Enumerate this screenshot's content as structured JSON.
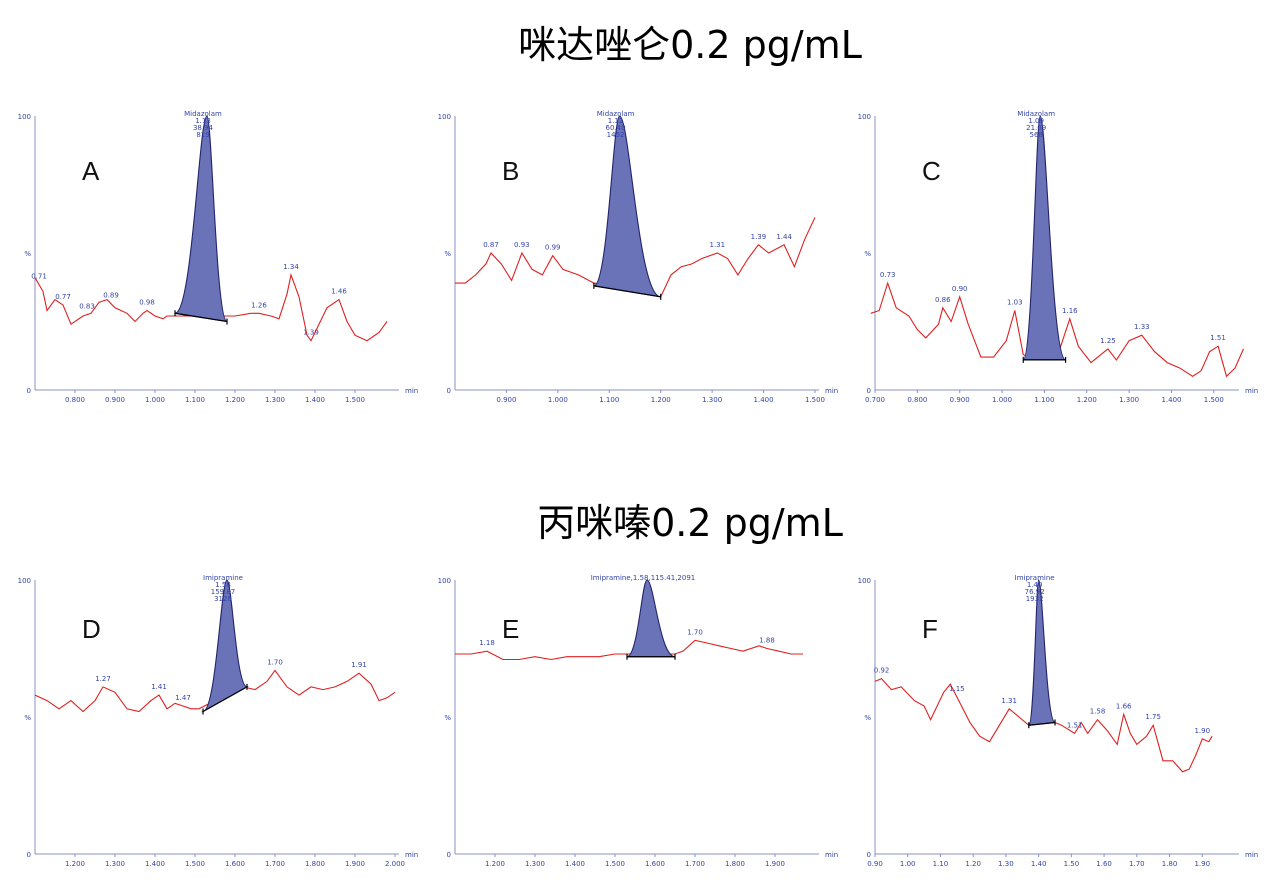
{
  "titles": {
    "top": "咪达唑仑0.2 pg/mL",
    "bottom": "丙咪嗪0.2 pg/mL"
  },
  "colors": {
    "trace": "#e02020",
    "peak_fill": "#6a72b8",
    "axis_text": "#3344aa"
  },
  "chart_data": [
    {
      "type": "line",
      "panel": "A",
      "xlim": [
        0.7,
        1.6
      ],
      "ylim": [
        0,
        100
      ],
      "xticks": [
        "0.800",
        "0.900",
        "1.000",
        "1.100",
        "1.200",
        "1.300",
        "1.400",
        "1.500"
      ],
      "x_unit": "min",
      "y_ticks": [
        "100",
        "%",
        "0"
      ],
      "trace": [
        [
          0.7,
          41
        ],
        [
          0.72,
          36
        ],
        [
          0.73,
          29
        ],
        [
          0.75,
          33
        ],
        [
          0.77,
          31
        ],
        [
          0.79,
          24
        ],
        [
          0.82,
          27
        ],
        [
          0.84,
          28
        ],
        [
          0.86,
          32
        ],
        [
          0.88,
          33
        ],
        [
          0.9,
          30
        ],
        [
          0.93,
          28
        ],
        [
          0.95,
          25
        ],
        [
          0.97,
          28
        ],
        [
          0.98,
          29
        ],
        [
          1.0,
          27
        ],
        [
          1.02,
          26
        ],
        [
          1.03,
          27
        ],
        [
          1.06,
          27
        ],
        [
          1.1,
          27
        ],
        [
          1.14,
          27
        ],
        [
          1.16,
          27
        ],
        [
          1.2,
          27
        ],
        [
          1.24,
          28
        ],
        [
          1.26,
          28
        ],
        [
          1.29,
          27
        ],
        [
          1.31,
          26
        ],
        [
          1.33,
          35
        ],
        [
          1.34,
          42
        ],
        [
          1.36,
          34
        ],
        [
          1.38,
          20
        ],
        [
          1.39,
          18
        ],
        [
          1.41,
          24
        ],
        [
          1.43,
          30
        ],
        [
          1.46,
          33
        ],
        [
          1.48,
          25
        ],
        [
          1.5,
          20
        ],
        [
          1.53,
          18
        ],
        [
          1.56,
          21
        ],
        [
          1.58,
          25
        ]
      ],
      "peak": {
        "start": 1.05,
        "apex": 1.13,
        "end": 1.18,
        "base_y0": 28,
        "base_y1": 25,
        "height": 100
      },
      "peak_label": [
        "Midazolam",
        "1.13",
        "38.94",
        "819"
      ],
      "labels": [
        {
          "x": 0.71,
          "text": "0.71"
        },
        {
          "x": 0.77,
          "text": "0.77"
        },
        {
          "x": 0.83,
          "text": "0.83"
        },
        {
          "x": 0.89,
          "text": "0.89"
        },
        {
          "x": 0.98,
          "text": "0.98"
        },
        {
          "x": 1.26,
          "text": "1.26"
        },
        {
          "x": 1.34,
          "text": "1.34"
        },
        {
          "x": 1.39,
          "text": "1.39"
        },
        {
          "x": 1.46,
          "text": "1.46"
        }
      ]
    },
    {
      "type": "line",
      "panel": "B",
      "xlim": [
        0.8,
        1.5
      ],
      "ylim": [
        0,
        100
      ],
      "xticks": [
        "0.900",
        "1.000",
        "1.100",
        "1.200",
        "1.300",
        "1.400",
        "1.500"
      ],
      "x_unit": "min",
      "y_ticks": [
        "100",
        "%",
        "0"
      ],
      "trace": [
        [
          0.8,
          39
        ],
        [
          0.82,
          39
        ],
        [
          0.84,
          42
        ],
        [
          0.86,
          46
        ],
        [
          0.87,
          50
        ],
        [
          0.89,
          46
        ],
        [
          0.91,
          40
        ],
        [
          0.93,
          50
        ],
        [
          0.95,
          44
        ],
        [
          0.97,
          42
        ],
        [
          0.99,
          49
        ],
        [
          1.01,
          44
        ],
        [
          1.04,
          42
        ],
        [
          1.07,
          39
        ],
        [
          1.1,
          38
        ],
        [
          1.14,
          37
        ],
        [
          1.18,
          35
        ],
        [
          1.2,
          34
        ],
        [
          1.22,
          42
        ],
        [
          1.24,
          45
        ],
        [
          1.26,
          46
        ],
        [
          1.28,
          48
        ],
        [
          1.31,
          50
        ],
        [
          1.33,
          48
        ],
        [
          1.35,
          42
        ],
        [
          1.37,
          48
        ],
        [
          1.39,
          53
        ],
        [
          1.41,
          50
        ],
        [
          1.43,
          52
        ],
        [
          1.44,
          53
        ],
        [
          1.46,
          45
        ],
        [
          1.48,
          55
        ],
        [
          1.5,
          63
        ]
      ],
      "peak": {
        "start": 1.07,
        "apex": 1.12,
        "end": 1.2,
        "base_y0": 38,
        "base_y1": 34,
        "height": 100
      },
      "peak_label": [
        "Midazolam",
        "1.12",
        "60.40",
        "1452"
      ],
      "labels": [
        {
          "x": 0.87,
          "text": "0.87"
        },
        {
          "x": 0.93,
          "text": "0.93"
        },
        {
          "x": 0.99,
          "text": "0.99"
        },
        {
          "x": 1.31,
          "text": "1.31"
        },
        {
          "x": 1.39,
          "text": "1.39"
        },
        {
          "x": 1.44,
          "text": "1.44"
        }
      ]
    },
    {
      "type": "line",
      "panel": "C",
      "xlim": [
        0.7,
        1.55
      ],
      "ylim": [
        0,
        100
      ],
      "xticks": [
        "0.700",
        "0.800",
        "0.900",
        "1.000",
        "1.100",
        "1.200",
        "1.300",
        "1.400",
        "1.500"
      ],
      "x_unit": "min",
      "y_ticks": [
        "100",
        "%",
        "0"
      ],
      "trace": [
        [
          0.69,
          28
        ],
        [
          0.71,
          29
        ],
        [
          0.73,
          39
        ],
        [
          0.75,
          30
        ],
        [
          0.78,
          27
        ],
        [
          0.8,
          22
        ],
        [
          0.82,
          19
        ],
        [
          0.85,
          24
        ],
        [
          0.86,
          30
        ],
        [
          0.88,
          25
        ],
        [
          0.9,
          34
        ],
        [
          0.92,
          24
        ],
        [
          0.95,
          12
        ],
        [
          0.98,
          12
        ],
        [
          1.01,
          18
        ],
        [
          1.03,
          29
        ],
        [
          1.05,
          13
        ],
        [
          1.07,
          11
        ],
        [
          1.09,
          11
        ],
        [
          1.11,
          11
        ],
        [
          1.13,
          12
        ],
        [
          1.16,
          26
        ],
        [
          1.18,
          16
        ],
        [
          1.21,
          10
        ],
        [
          1.25,
          15
        ],
        [
          1.27,
          11
        ],
        [
          1.3,
          18
        ],
        [
          1.33,
          20
        ],
        [
          1.36,
          14
        ],
        [
          1.39,
          10
        ],
        [
          1.42,
          8
        ],
        [
          1.45,
          5
        ],
        [
          1.47,
          7
        ],
        [
          1.49,
          14
        ],
        [
          1.51,
          16
        ],
        [
          1.53,
          5
        ],
        [
          1.55,
          8
        ],
        [
          1.57,
          15
        ]
      ],
      "peak": {
        "start": 1.05,
        "apex": 1.09,
        "end": 1.15,
        "base_y0": 11,
        "base_y1": 11,
        "height": 100
      },
      "peak_label": [
        "Midazolam",
        "1.09",
        "21.09",
        "568"
      ],
      "labels": [
        {
          "x": 0.73,
          "text": "0.73"
        },
        {
          "x": 0.86,
          "text": "0.86"
        },
        {
          "x": 0.9,
          "text": "0.90"
        },
        {
          "x": 1.03,
          "text": "1.03"
        },
        {
          "x": 1.16,
          "text": "1.16"
        },
        {
          "x": 1.25,
          "text": "1.25"
        },
        {
          "x": 1.33,
          "text": "1.33"
        },
        {
          "x": 1.51,
          "text": "1.51"
        }
      ]
    },
    {
      "type": "line",
      "panel": "D",
      "xlim": [
        1.1,
        2.0
      ],
      "ylim": [
        0,
        100
      ],
      "xticks": [
        "1.200",
        "1.300",
        "1.400",
        "1.500",
        "1.600",
        "1.700",
        "1.800",
        "1.900",
        "2.000"
      ],
      "x_unit": "min",
      "y_ticks": [
        "100",
        "%",
        "0"
      ],
      "trace": [
        [
          1.1,
          58
        ],
        [
          1.13,
          56
        ],
        [
          1.16,
          53
        ],
        [
          1.19,
          56
        ],
        [
          1.22,
          52
        ],
        [
          1.25,
          56
        ],
        [
          1.27,
          61
        ],
        [
          1.3,
          59
        ],
        [
          1.33,
          53
        ],
        [
          1.36,
          52
        ],
        [
          1.39,
          56
        ],
        [
          1.41,
          58
        ],
        [
          1.43,
          53
        ],
        [
          1.45,
          55
        ],
        [
          1.47,
          54
        ],
        [
          1.49,
          53
        ],
        [
          1.51,
          53
        ],
        [
          1.55,
          56
        ],
        [
          1.58,
          59
        ],
        [
          1.62,
          61
        ],
        [
          1.65,
          60
        ],
        [
          1.68,
          63
        ],
        [
          1.7,
          67
        ],
        [
          1.73,
          61
        ],
        [
          1.76,
          58
        ],
        [
          1.79,
          61
        ],
        [
          1.82,
          60
        ],
        [
          1.85,
          61
        ],
        [
          1.88,
          63
        ],
        [
          1.91,
          66
        ],
        [
          1.94,
          62
        ],
        [
          1.96,
          56
        ],
        [
          1.98,
          57
        ],
        [
          2.0,
          59
        ]
      ],
      "peak": {
        "start": 1.52,
        "apex": 1.58,
        "end": 1.63,
        "base_y0": 52,
        "base_y1": 61,
        "height": 100
      },
      "peak_label": [
        "Imipramine",
        "1.58",
        "159.87",
        "3126"
      ],
      "labels": [
        {
          "x": 1.27,
          "text": "1.27"
        },
        {
          "x": 1.41,
          "text": "1.41"
        },
        {
          "x": 1.47,
          "text": "1.47"
        },
        {
          "x": 1.7,
          "text": "1.70"
        },
        {
          "x": 1.91,
          "text": "1.91"
        }
      ]
    },
    {
      "type": "line",
      "panel": "E",
      "xlim": [
        1.1,
        2.0
      ],
      "ylim": [
        0,
        100
      ],
      "xticks": [
        "1.200",
        "1.300",
        "1.400",
        "1.500",
        "1.600",
        "1.700",
        "1.800",
        "1.900"
      ],
      "x_unit": "min",
      "y_ticks": [
        "100",
        "%",
        "0"
      ],
      "trace": [
        [
          1.1,
          73
        ],
        [
          1.14,
          73
        ],
        [
          1.18,
          74
        ],
        [
          1.22,
          71
        ],
        [
          1.26,
          71
        ],
        [
          1.3,
          72
        ],
        [
          1.34,
          71
        ],
        [
          1.38,
          72
        ],
        [
          1.42,
          72
        ],
        [
          1.46,
          72
        ],
        [
          1.5,
          73
        ],
        [
          1.53,
          73
        ],
        [
          1.58,
          73
        ],
        [
          1.62,
          73
        ],
        [
          1.65,
          73
        ],
        [
          1.67,
          74
        ],
        [
          1.7,
          78
        ],
        [
          1.73,
          77
        ],
        [
          1.76,
          76
        ],
        [
          1.79,
          75
        ],
        [
          1.82,
          74
        ],
        [
          1.86,
          76
        ],
        [
          1.88,
          75
        ],
        [
          1.91,
          74
        ],
        [
          1.94,
          73
        ],
        [
          1.97,
          73
        ]
      ],
      "peak": {
        "start": 1.53,
        "apex": 1.58,
        "end": 1.65,
        "base_y0": 72,
        "base_y1": 72,
        "height": 100
      },
      "peak_label": [
        "Imipramine,1.58,115.41,2091"
      ],
      "labels": [
        {
          "x": 1.18,
          "text": "1.18"
        },
        {
          "x": 1.7,
          "text": "1.70"
        },
        {
          "x": 1.88,
          "text": "1.88"
        }
      ]
    },
    {
      "type": "line",
      "panel": "F",
      "xlim": [
        0.9,
        2.0
      ],
      "ylim": [
        0,
        100
      ],
      "xticks": [
        "0.90",
        "1.00",
        "1.10",
        "1.20",
        "1.30",
        "1.40",
        "1.50",
        "1.60",
        "1.70",
        "1.80",
        "1.90"
      ],
      "x_unit": "min",
      "y_ticks": [
        "100",
        "%",
        "0"
      ],
      "trace": [
        [
          0.9,
          63
        ],
        [
          0.92,
          64
        ],
        [
          0.95,
          60
        ],
        [
          0.98,
          61
        ],
        [
          1.02,
          56
        ],
        [
          1.05,
          54
        ],
        [
          1.07,
          49
        ],
        [
          1.11,
          59
        ],
        [
          1.13,
          62
        ],
        [
          1.16,
          55
        ],
        [
          1.19,
          48
        ],
        [
          1.22,
          43
        ],
        [
          1.25,
          41
        ],
        [
          1.28,
          47
        ],
        [
          1.31,
          53
        ],
        [
          1.34,
          50
        ],
        [
          1.37,
          47
        ],
        [
          1.39,
          48
        ],
        [
          1.41,
          51
        ],
        [
          1.43,
          49
        ],
        [
          1.47,
          47
        ],
        [
          1.51,
          44
        ],
        [
          1.53,
          48
        ],
        [
          1.55,
          44
        ],
        [
          1.58,
          49
        ],
        [
          1.61,
          45
        ],
        [
          1.64,
          40
        ],
        [
          1.66,
          51
        ],
        [
          1.68,
          44
        ],
        [
          1.7,
          40
        ],
        [
          1.73,
          43
        ],
        [
          1.75,
          47
        ],
        [
          1.78,
          34
        ],
        [
          1.81,
          34
        ],
        [
          1.84,
          30
        ],
        [
          1.86,
          31
        ],
        [
          1.88,
          36
        ],
        [
          1.9,
          42
        ],
        [
          1.92,
          41
        ],
        [
          1.93,
          43
        ]
      ],
      "peak": {
        "start": 1.37,
        "apex": 1.4,
        "end": 1.45,
        "base_y0": 47,
        "base_y1": 48,
        "height": 100
      },
      "peak_label": [
        "Imipramine",
        "1.40",
        "76.92",
        "1932"
      ],
      "labels": [
        {
          "x": 0.92,
          "text": "0.92"
        },
        {
          "x": 1.15,
          "text": "1.15"
        },
        {
          "x": 1.31,
          "text": "1.31"
        },
        {
          "x": 1.51,
          "text": "1.51"
        },
        {
          "x": 1.58,
          "text": "1.58"
        },
        {
          "x": 1.66,
          "text": "1.66"
        },
        {
          "x": 1.75,
          "text": "1.75"
        },
        {
          "x": 1.9,
          "text": "1.90"
        }
      ]
    }
  ]
}
